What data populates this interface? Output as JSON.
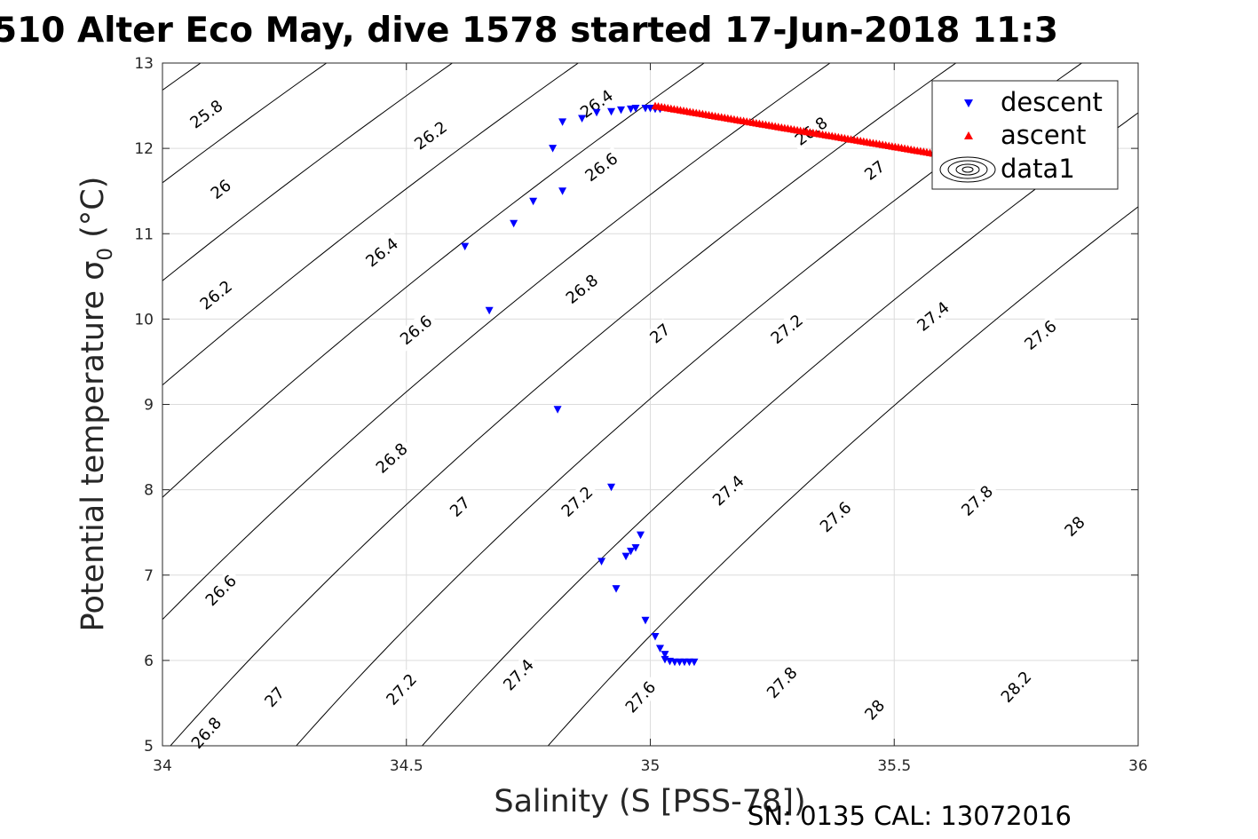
{
  "title": "510 Alter Eco May, dive 1578 started 17-Jun-2018 11:3",
  "footer": "SN: 0135  CAL: 13072016",
  "chart_data": {
    "type": "scatter",
    "xlabel": "Salinity (S [PSS-78])",
    "ylabel_main": "Potential temperature σ",
    "ylabel_sub": "0",
    "ylabel_unit": " (°C)",
    "xlim": [
      34,
      36
    ],
    "ylim": [
      5,
      13
    ],
    "xticks": [
      34,
      34.5,
      35,
      35.5,
      36
    ],
    "xtick_labels": [
      "34",
      "34.5",
      "35",
      "35.5",
      "36"
    ],
    "yticks": [
      5,
      6,
      7,
      8,
      9,
      10,
      11,
      12,
      13
    ],
    "ytick_labels": [
      "5",
      "6",
      "7",
      "8",
      "9",
      "10",
      "11",
      "12",
      "13"
    ],
    "grid": true,
    "legend_position": "top-right",
    "legend": [
      "descent",
      "ascent",
      "data1"
    ],
    "colors": {
      "descent": "#0000ff",
      "ascent": "#ff0000",
      "contour": "#000000",
      "grid": "#dcdcdc"
    },
    "contour_levels": [
      25.8,
      26.0,
      26.2,
      26.4,
      26.6,
      26.8,
      27.0,
      27.2,
      27.4,
      27.6,
      27.8,
      28.0,
      28.2
    ],
    "contour_label_points": [
      {
        "text": "25.8",
        "s": 34.09,
        "t": 12.4
      },
      {
        "text": "26",
        "s": 34.12,
        "t": 11.52
      },
      {
        "text": "26.2",
        "s": 34.11,
        "t": 10.28
      },
      {
        "text": "26.2",
        "s": 34.55,
        "t": 12.15
      },
      {
        "text": "26.4",
        "s": 34.45,
        "t": 10.78
      },
      {
        "text": "26.4",
        "s": 34.89,
        "t": 12.52
      },
      {
        "text": "26.6",
        "s": 34.12,
        "t": 6.82
      },
      {
        "text": "26.6",
        "s": 34.52,
        "t": 9.87
      },
      {
        "text": "26.6",
        "s": 34.9,
        "t": 11.78
      },
      {
        "text": "26.8",
        "s": 34.09,
        "t": 5.15
      },
      {
        "text": "26.8",
        "s": 34.47,
        "t": 8.37
      },
      {
        "text": "26.8",
        "s": 34.86,
        "t": 10.35
      },
      {
        "text": "26.8",
        "s": 35.33,
        "t": 12.2
      },
      {
        "text": "27",
        "s": 34.23,
        "t": 5.57
      },
      {
        "text": "27",
        "s": 34.61,
        "t": 7.8
      },
      {
        "text": "27",
        "s": 35.02,
        "t": 9.83
      },
      {
        "text": "27",
        "s": 35.46,
        "t": 11.74
      },
      {
        "text": "27.2",
        "s": 34.49,
        "t": 5.66
      },
      {
        "text": "27.2",
        "s": 34.85,
        "t": 7.86
      },
      {
        "text": "27.2",
        "s": 35.28,
        "t": 9.88
      },
      {
        "text": "27.4",
        "s": 34.73,
        "t": 5.83
      },
      {
        "text": "27.4",
        "s": 35.16,
        "t": 7.99
      },
      {
        "text": "27.4",
        "s": 35.58,
        "t": 10.03
      },
      {
        "text": "27.6",
        "s": 34.98,
        "t": 5.57
      },
      {
        "text": "27.6",
        "s": 35.38,
        "t": 7.68
      },
      {
        "text": "27.6",
        "s": 35.8,
        "t": 9.81
      },
      {
        "text": "27.8",
        "s": 35.27,
        "t": 5.74
      },
      {
        "text": "27.8",
        "s": 35.67,
        "t": 7.87
      },
      {
        "text": "28",
        "s": 35.46,
        "t": 5.42
      },
      {
        "text": "28",
        "s": 35.87,
        "t": 7.57
      },
      {
        "text": "28.2",
        "s": 35.75,
        "t": 5.69
      }
    ],
    "series": [
      {
        "name": "descent",
        "marker": "triangle-down",
        "x": [
          34.62,
          34.67,
          34.72,
          34.76,
          34.8,
          34.82,
          34.82,
          34.86,
          34.89,
          34.92,
          34.94,
          34.96,
          34.97,
          34.99,
          35.0,
          35.01,
          35.02,
          34.81,
          34.92,
          34.98,
          34.97,
          34.96,
          34.95,
          34.9,
          34.93,
          34.99,
          35.01,
          35.02,
          35.03,
          35.03,
          35.04,
          35.05,
          35.06,
          35.07,
          35.08,
          35.09
        ],
        "y": [
          10.85,
          10.1,
          11.12,
          11.38,
          12.0,
          12.31,
          11.5,
          12.35,
          12.42,
          12.43,
          12.45,
          12.46,
          12.47,
          12.47,
          12.47,
          12.46,
          12.46,
          8.94,
          8.03,
          7.47,
          7.32,
          7.28,
          7.22,
          7.16,
          6.84,
          6.47,
          6.28,
          6.14,
          6.07,
          6.01,
          5.99,
          5.98,
          5.98,
          5.98,
          5.98,
          5.98
        ]
      },
      {
        "name": "ascent",
        "marker": "triangle-up",
        "x": [
          35.01,
          35.625
        ],
        "y": [
          12.5,
          11.9
        ]
      }
    ]
  }
}
